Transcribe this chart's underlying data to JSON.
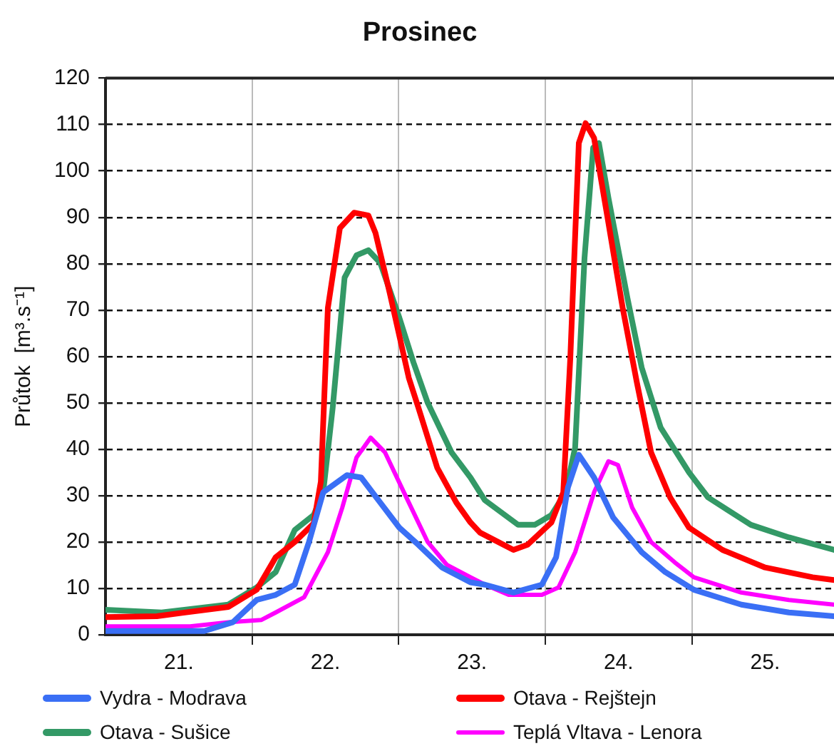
{
  "chart_data": {
    "type": "line",
    "title": "Prosinec",
    "ylabel": "Průtok  [m³.s⁻¹]",
    "xlim": [
      21,
      25.97
    ],
    "xticks": [
      {
        "value": 21.5,
        "label": "21."
      },
      {
        "value": 22,
        "label": null
      },
      {
        "value": 22.5,
        "label": "22."
      },
      {
        "value": 23,
        "label": null
      },
      {
        "value": 23.5,
        "label": "23."
      },
      {
        "value": 24,
        "label": null
      },
      {
        "value": 24.5,
        "label": "24."
      },
      {
        "value": 25,
        "label": null
      },
      {
        "value": 25.5,
        "label": "25."
      }
    ],
    "ylim": [
      0,
      120
    ],
    "yticks": [
      0,
      10,
      20,
      30,
      40,
      50,
      60,
      70,
      80,
      90,
      100,
      110,
      120
    ],
    "grid": true,
    "legend": "bottom",
    "marker": "none",
    "line_style": "solid",
    "series": [
      {
        "name": "Vydra - Modrava",
        "color": "#3a6ff5",
        "x": [
          21.0,
          21.674,
          21.869,
          22.031,
          22.161,
          22.291,
          22.388,
          22.485,
          22.647,
          22.744,
          22.874,
          23.004,
          23.134,
          23.296,
          23.49,
          23.588,
          23.783,
          23.977,
          24.074,
          24.155,
          24.229,
          24.333,
          24.463,
          24.658,
          24.819,
          25.014,
          25.338,
          25.662,
          25.97
        ],
        "values": [
          0.8,
          0.8,
          2.7,
          7.5,
          8.6,
          10.8,
          20,
          30.7,
          34.4,
          33.9,
          28.5,
          23.1,
          19.4,
          14.5,
          11.3,
          10.8,
          9.1,
          10.8,
          16.7,
          31.8,
          38.8,
          33.9,
          25.3,
          17.8,
          13.5,
          9.7,
          6.5,
          4.8,
          4
        ]
      },
      {
        "name": "Otava - Rejštejn",
        "color": "#ff0000",
        "x": [
          21.0,
          21.35,
          21.837,
          22.031,
          22.161,
          22.291,
          22.42,
          22.469,
          22.517,
          22.599,
          22.696,
          22.793,
          22.842,
          22.939,
          23.069,
          23.134,
          23.263,
          23.393,
          23.49,
          23.556,
          23.783,
          23.879,
          24.042,
          24.123,
          24.171,
          24.229,
          24.275,
          24.333,
          24.431,
          24.528,
          24.625,
          24.722,
          24.852,
          24.981,
          25.209,
          25.5,
          25.824,
          25.97
        ],
        "values": [
          3.8,
          4,
          6,
          9.7,
          16.7,
          20,
          24,
          33,
          70.5,
          87.7,
          91,
          90.4,
          86.6,
          73.7,
          55.4,
          49,
          36,
          28.5,
          24.2,
          22,
          18.3,
          19.4,
          24.2,
          30.7,
          59.7,
          106,
          110.3,
          107.1,
          88.8,
          70.5,
          54.4,
          39.3,
          29.6,
          23.1,
          18.3,
          14.5,
          12.4,
          11.8
        ]
      },
      {
        "name": "Otava - Sušice",
        "color": "#339966",
        "x": [
          21.0,
          21.383,
          21.837,
          22.031,
          22.161,
          22.291,
          22.42,
          22.485,
          22.55,
          22.631,
          22.712,
          22.793,
          22.874,
          23.004,
          23.101,
          23.198,
          23.361,
          23.49,
          23.588,
          23.815,
          23.928,
          24.042,
          24.139,
          24.204,
          24.268,
          24.327,
          24.366,
          24.431,
          24.56,
          24.658,
          24.787,
          24.981,
          25.111,
          25.403,
          25.662,
          25.97
        ],
        "values": [
          5.4,
          4.8,
          6.5,
          10.2,
          13.5,
          22.6,
          25.8,
          30.7,
          49,
          77,
          81.8,
          82.9,
          80.2,
          68.4,
          58.7,
          50,
          39.3,
          33.9,
          29,
          23.7,
          23.7,
          25.8,
          30.7,
          40.4,
          81.3,
          105,
          106,
          94.2,
          72.7,
          57.6,
          44.7,
          35,
          29.6,
          23.7,
          21,
          18.3
        ]
      },
      {
        "name": "Teplá Vltava - Lenora",
        "color": "#ff00ff",
        "x": [
          21.0,
          21.577,
          21.837,
          22.064,
          22.161,
          22.355,
          22.517,
          22.615,
          22.712,
          22.809,
          22.907,
          23.036,
          23.198,
          23.328,
          23.49,
          23.588,
          23.75,
          23.977,
          24.09,
          24.204,
          24.333,
          24.431,
          24.496,
          24.593,
          24.722,
          24.884,
          25.014,
          25.338,
          25.662,
          25.97
        ],
        "values": [
          1.8,
          1.8,
          2.7,
          3.2,
          4.8,
          8.1,
          17.8,
          27.4,
          38.2,
          42.5,
          39.3,
          30.7,
          20,
          15.1,
          12.4,
          10.8,
          8.6,
          8.6,
          10.2,
          17.8,
          30.7,
          37.4,
          36.6,
          27.4,
          20,
          15.6,
          12.4,
          9.1,
          7.5,
          6.5
        ]
      }
    ]
  }
}
